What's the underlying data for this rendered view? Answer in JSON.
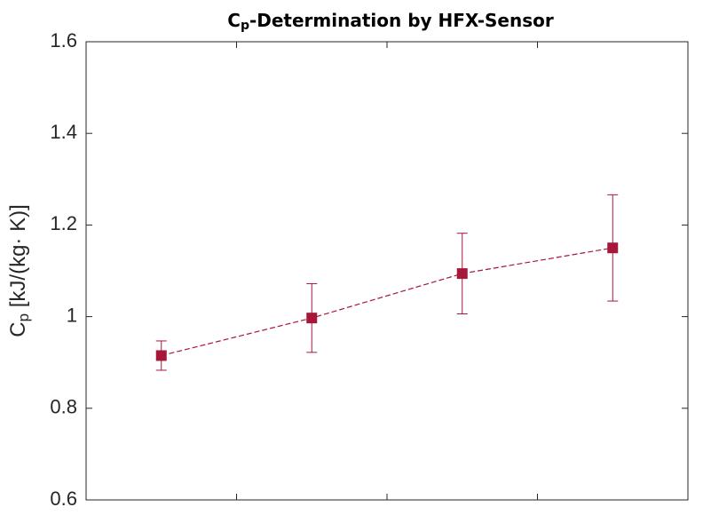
{
  "chart_data": {
    "type": "line",
    "title": [
      "C",
      "p",
      "-Determination by HFX-Sensor"
    ],
    "ylabel": [
      "C",
      "p",
      " [kJ/(kg· K)]"
    ],
    "x": [
      0.5,
      1.5,
      2.5,
      3.5
    ],
    "values": [
      0.915,
      0.997,
      1.094,
      1.15
    ],
    "errors": [
      0.032,
      0.075,
      0.088,
      0.116
    ],
    "color": "#a6173a",
    "xlim": [
      0,
      4
    ],
    "xticks": [
      1,
      2,
      3
    ],
    "ylim": [
      0.6,
      1.6
    ],
    "yticks": [
      0.6,
      0.8,
      1,
      1.2,
      1.4,
      1.6
    ],
    "grid": false
  }
}
